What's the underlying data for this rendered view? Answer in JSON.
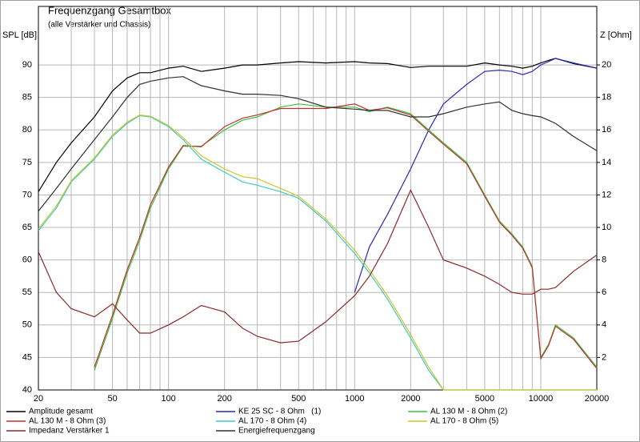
{
  "chart_data": {
    "type": "line",
    "title": "Frequenzgang Gesamtbox",
    "subtitle": "(alle Verstärker und Chassis)",
    "ylabel": "SPL [dB]",
    "y2label": "Z [Ohm]",
    "xscale": "log",
    "grid": true,
    "legend": "bottom",
    "xlim": [
      20,
      20000
    ],
    "xticks": [
      20,
      50,
      100,
      200,
      500,
      1000,
      2000,
      5000,
      10000,
      20000
    ],
    "xgrid_minor": [
      30,
      40,
      60,
      70,
      80,
      90,
      300,
      400,
      600,
      700,
      800,
      900,
      3000,
      4000,
      6000,
      7000,
      8000,
      9000
    ],
    "ylim": [
      40,
      99
    ],
    "yticks": [
      40,
      45,
      50,
      55,
      60,
      65,
      70,
      75,
      80,
      85,
      90
    ],
    "y2lim": [
      0,
      23.6
    ],
    "y2ticks": [
      2,
      4,
      6,
      8,
      10,
      12,
      14,
      16,
      18,
      20
    ],
    "x": [
      20,
      25,
      30,
      40,
      50,
      60,
      70,
      80,
      100,
      120,
      150,
      200,
      250,
      300,
      400,
      500,
      700,
      1000,
      1200,
      1500,
      2000,
      2500,
      3000,
      4000,
      5000,
      6000,
      7000,
      8000,
      9000,
      10000,
      11000,
      12000,
      15000,
      20000
    ],
    "series": [
      {
        "name": "Amplitude gesamt",
        "color": "#000000",
        "values": [
          70.5,
          75,
          78,
          82,
          86,
          88,
          88.8,
          88.8,
          89.5,
          89.8,
          89,
          89.5,
          90,
          90,
          90.3,
          90.5,
          90.3,
          90.5,
          90.3,
          90.2,
          89.6,
          89.8,
          89.8,
          89.8,
          90.3,
          90,
          89.8,
          89.5,
          89.8,
          90.3,
          90.7,
          91,
          90.2,
          89.5
        ]
      },
      {
        "name": "KE 25 SC - 8 Ohm   (1)",
        "color": "#2a2ab8",
        "values": [
          null,
          null,
          null,
          null,
          null,
          null,
          null,
          null,
          null,
          null,
          null,
          null,
          null,
          null,
          null,
          null,
          null,
          55,
          62,
          67,
          74,
          80,
          84,
          87,
          89,
          89.2,
          89,
          88.5,
          89,
          90,
          90.5,
          91,
          90.3,
          89.5
        ]
      },
      {
        "name": "AL 130 M - 8 Ohm (2)",
        "color": "#3cc23c",
        "values": [
          null,
          null,
          null,
          43,
          51,
          58,
          63,
          68,
          74,
          77.5,
          77.5,
          80,
          81.5,
          82,
          83.5,
          84,
          83.5,
          83.5,
          82.8,
          83.5,
          82.5,
          80,
          78,
          75,
          70,
          66,
          64,
          62,
          59,
          45,
          47,
          50,
          48,
          43.5
        ]
      },
      {
        "name": "AL 130 M - 8 Ohm (3)",
        "color": "#c03030",
        "values": [
          null,
          null,
          null,
          43.5,
          51.5,
          58.5,
          63.5,
          68.5,
          74.3,
          77.6,
          77.4,
          80.5,
          81.8,
          82.3,
          83.3,
          83.3,
          83.3,
          84,
          83,
          83.4,
          82.3,
          79.8,
          77.8,
          74.8,
          69.8,
          65.8,
          63.8,
          61.8,
          58.8,
          44.8,
          46.8,
          49.8,
          47.8,
          43.3
        ]
      },
      {
        "name": "AL 170 - 8 Ohm (4)",
        "color": "#40c8c8",
        "values": [
          64.5,
          68,
          72,
          75.5,
          79,
          81,
          82.2,
          82,
          80.5,
          78.5,
          75.5,
          73.5,
          72,
          71.5,
          70.5,
          69.5,
          66,
          61,
          58,
          54,
          48,
          43,
          40,
          40,
          40,
          40,
          40,
          40,
          40,
          40,
          40,
          40,
          40,
          40
        ]
      },
      {
        "name": "AL 170 - 8 Ohm (5)",
        "color": "#c8c828",
        "values": [
          64.8,
          68.3,
          72.2,
          75.7,
          79.2,
          81.2,
          82.3,
          82.1,
          80.7,
          78.8,
          76,
          74,
          72.8,
          72.5,
          71,
          69.8,
          66.3,
          61.5,
          58.5,
          54.5,
          48.5,
          43.5,
          40,
          40,
          40,
          40,
          40,
          40,
          40,
          40,
          40,
          40,
          40,
          40
        ]
      },
      {
        "name": "Impedanz Verstärker 1",
        "color": "#8a2a2a",
        "axis": "y2",
        "values": [
          8.5,
          6,
          5,
          4.5,
          5.3,
          4.3,
          3.5,
          3.5,
          4,
          4.5,
          5.2,
          4.8,
          3.8,
          3.3,
          2.9,
          3,
          4.2,
          5.8,
          7,
          9,
          12.3,
          10,
          8,
          7.5,
          7,
          6.5,
          6,
          5.9,
          5.9,
          6.2,
          6.2,
          6.3,
          7.3,
          8.3
        ]
      },
      {
        "name": "Energiefrequenzgang",
        "color": "#303030",
        "values": [
          67.5,
          71,
          74,
          78.5,
          82,
          85,
          87,
          87.5,
          88,
          88.2,
          86.8,
          86,
          85.5,
          85.5,
          85.3,
          84.8,
          83.5,
          83.2,
          83,
          83,
          82,
          82,
          82.5,
          83.5,
          84,
          84.3,
          83,
          82.5,
          82.2,
          82,
          81.5,
          81,
          79,
          76.8
        ]
      }
    ]
  }
}
